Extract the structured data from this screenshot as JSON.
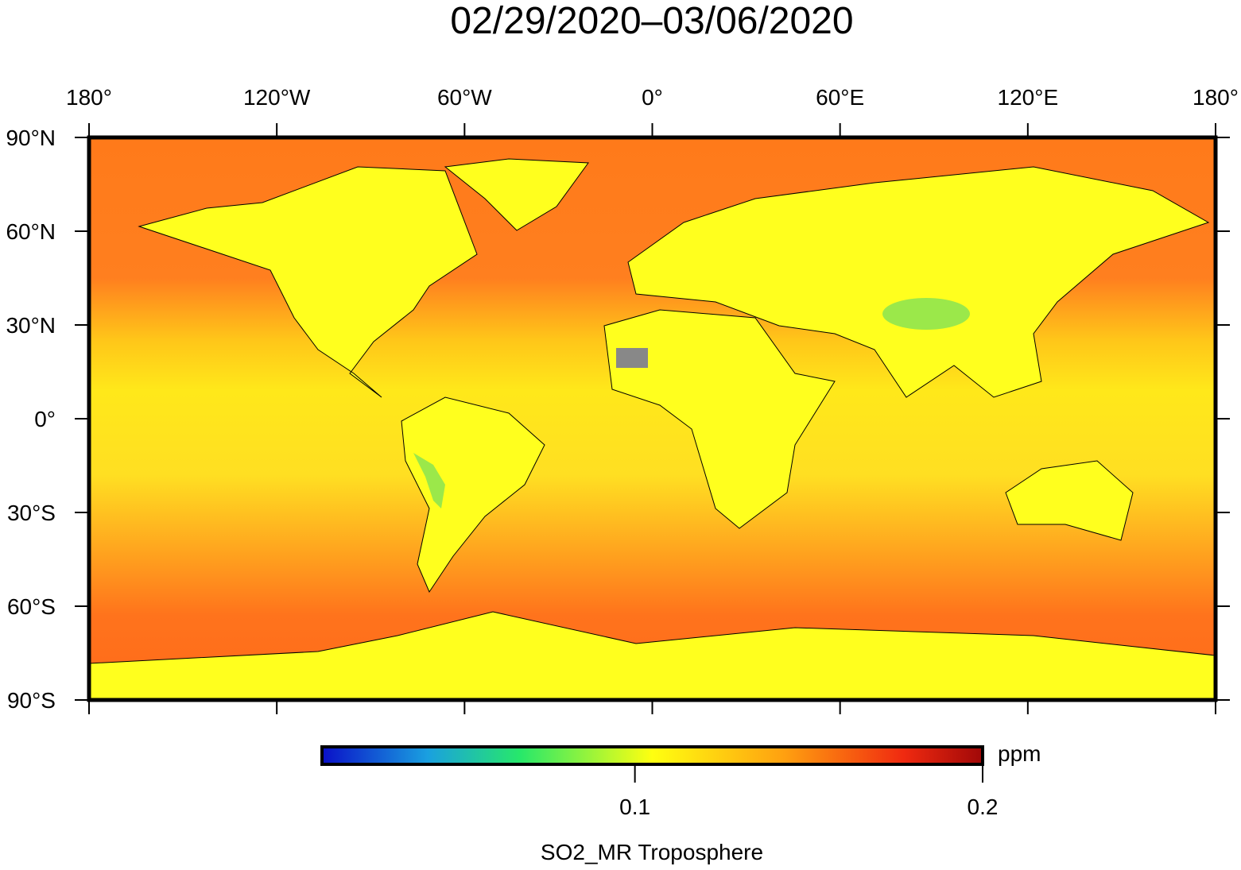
{
  "title": "02/29/2020–03/06/2020",
  "map": {
    "xlim": [
      -180,
      180
    ],
    "ylim": [
      -90,
      90
    ],
    "xticks": [
      {
        "value": -180,
        "label": "180°"
      },
      {
        "value": -120,
        "label": "120°W"
      },
      {
        "value": -60,
        "label": "60°W"
      },
      {
        "value": 0,
        "label": "0°"
      },
      {
        "value": 60,
        "label": "60°E"
      },
      {
        "value": 120,
        "label": "120°E"
      },
      {
        "value": 180,
        "label": "180°"
      }
    ],
    "yticks": [
      {
        "value": 90,
        "label": "90°N"
      },
      {
        "value": 60,
        "label": "60°N"
      },
      {
        "value": 30,
        "label": "30°N"
      },
      {
        "value": 0,
        "label": "0°"
      },
      {
        "value": -30,
        "label": "30°S"
      },
      {
        "value": -60,
        "label": "60°S"
      },
      {
        "value": -90,
        "label": "90°S"
      }
    ]
  },
  "colorbar": {
    "label": "SO2_MR Troposphere",
    "unit": "ppm",
    "lim": [
      0.01,
      0.2
    ],
    "ticks": [
      0.1,
      0.2
    ]
  }
}
